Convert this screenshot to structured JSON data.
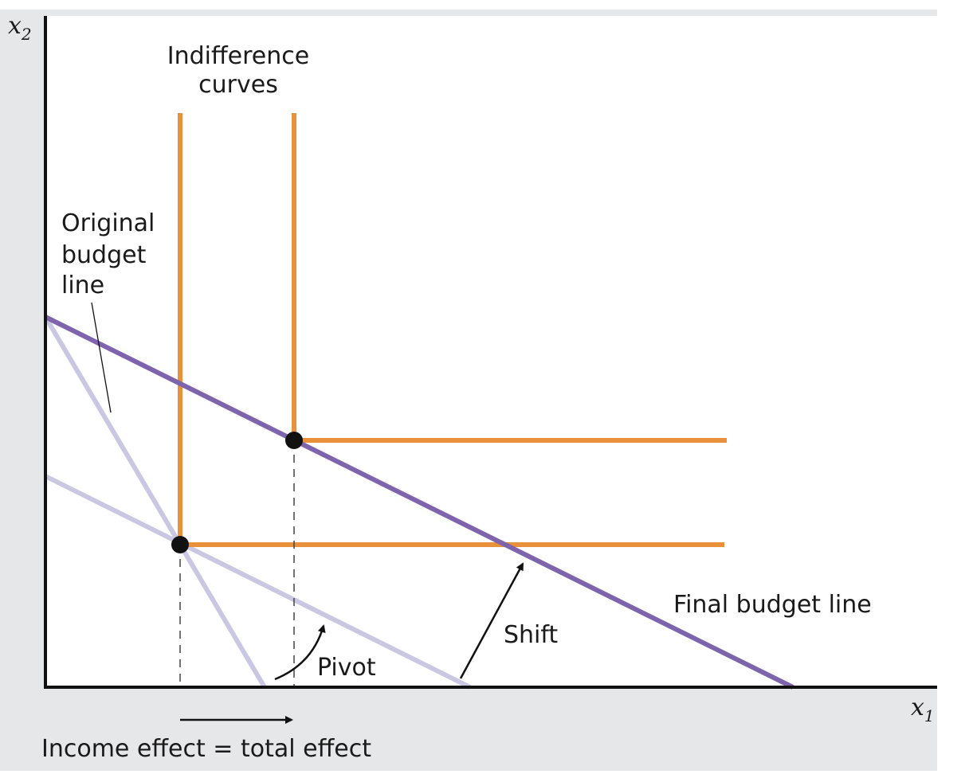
{
  "colors": {
    "background_panel": "#e6e7e8",
    "plot_area": "#ffffff",
    "axis": "#111111",
    "indifference_curve": "#e8903a",
    "final_budget_line": "#7d64ad",
    "original_budget_line": "#c9c7e2",
    "point": "#111111",
    "guide": "#444444"
  },
  "axes": {
    "x_label": "x",
    "x_sub": "1",
    "y_label": "x",
    "y_sub": "2"
  },
  "labels": {
    "indifference_curves": [
      "Indifference",
      "curves"
    ],
    "original_budget_line": [
      "Original",
      "budget",
      "line"
    ],
    "final_budget_line": "Final budget line",
    "shift": "Shift",
    "pivot": "Pivot",
    "income_effect": "Income effect = total effect"
  },
  "icons": {
    "point": "filled-circle",
    "arrow": "arrowhead"
  }
}
